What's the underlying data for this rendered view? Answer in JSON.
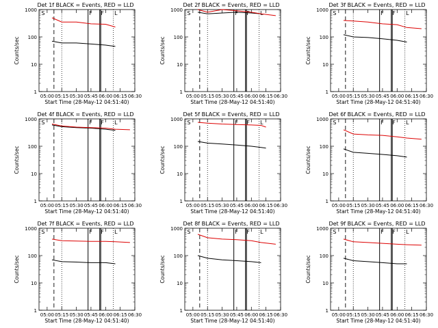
{
  "xlabel": "Start Time (28-May-12 04:51:40)",
  "ylabel": "Counts/sec",
  "x_ticks": [
    "05:00",
    "05:15",
    "05:30",
    "05:45",
    "06:00",
    "06:15",
    "06:30"
  ],
  "y_ticks": [
    "1",
    "10",
    "100",
    "1000"
  ],
  "markers": {
    "solid": [
      "05:42",
      "05:54",
      "05:55"
    ],
    "dotted": [
      "05:15",
      "06:08"
    ],
    "dashed": [
      "05:07"
    ]
  },
  "marker_letters": [
    "S",
    "F",
    "F",
    "L"
  ],
  "colors": {
    "events": "#000000",
    "lld": "#dd0000"
  },
  "chart_data": [
    {
      "type": "line",
      "title": "Det 1f BLACK = Events, RED = LLD",
      "x_range": [
        "04:51:40",
        "06:30"
      ],
      "ylim": [
        1,
        1000
      ],
      "y_scale": "log",
      "x": [
        "05:05",
        "05:15",
        "05:30",
        "05:45",
        "06:00",
        "06:10"
      ],
      "series": [
        {
          "values": [
            70,
            60,
            60,
            55,
            50,
            45
          ]
        },
        {
          "values": [
            500,
            350,
            350,
            300,
            290,
            230
          ]
        }
      ]
    },
    {
      "type": "line",
      "title": "Det 2f BLACK = Events, RED = LLD",
      "x_range": [
        "04:51:40",
        "06:30"
      ],
      "ylim": [
        1,
        1000
      ],
      "y_scale": "log",
      "x": [
        "05:05",
        "05:15",
        "05:30",
        "05:45",
        "06:00",
        "06:10",
        "06:25"
      ],
      "series": [
        {
          "values": [
            800,
            700,
            750,
            800,
            750,
            700,
            null
          ]
        },
        {
          "values": [
            1000,
            800,
            1000,
            900,
            800,
            700,
            600
          ]
        }
      ]
    },
    {
      "type": "line",
      "title": "Det 3f BLACK = Events, RED = LLD",
      "x_range": [
        "04:51:40",
        "06:30"
      ],
      "ylim": [
        1,
        1000
      ],
      "y_scale": "log",
      "x": [
        "05:05",
        "05:15",
        "05:30",
        "05:45",
        "06:00",
        "06:10",
        "06:25"
      ],
      "series": [
        {
          "values": [
            120,
            100,
            95,
            85,
            75,
            65,
            null
          ]
        },
        {
          "values": [
            400,
            380,
            350,
            300,
            280,
            220,
            200
          ]
        }
      ]
    },
    {
      "type": "line",
      "title": "Det 4f BLACK = Events, RED = LLD",
      "x_range": [
        "04:51:40",
        "06:30"
      ],
      "ylim": [
        1,
        1000
      ],
      "y_scale": "log",
      "x": [
        "05:05",
        "05:15",
        "05:30",
        "05:45",
        "06:00",
        "06:10",
        "06:25"
      ],
      "series": [
        {
          "values": [
            600,
            520,
            480,
            460,
            420,
            380,
            null
          ]
        },
        {
          "values": [
            650,
            550,
            500,
            480,
            460,
            420,
            400
          ]
        }
      ]
    },
    {
      "type": "line",
      "title": "Det 5f BLACK = Events, RED = LLD",
      "x_range": [
        "04:51:40",
        "06:30"
      ],
      "ylim": [
        1,
        1000
      ],
      "y_scale": "log",
      "x": [
        "05:05",
        "05:15",
        "05:30",
        "05:45",
        "06:00",
        "06:10",
        "06:15"
      ],
      "series": [
        {
          "values": [
            150,
            130,
            120,
            110,
            100,
            90,
            85
          ]
        },
        {
          "values": [
            750,
            700,
            650,
            620,
            600,
            580,
            500
          ]
        }
      ]
    },
    {
      "type": "line",
      "title": "Det 6f BLACK = Events, RED = LLD",
      "x_range": [
        "04:51:40",
        "06:30"
      ],
      "ylim": [
        1,
        1000
      ],
      "y_scale": "log",
      "x": [
        "05:05",
        "05:15",
        "05:30",
        "05:45",
        "06:00",
        "06:10",
        "06:25"
      ],
      "series": [
        {
          "values": [
            80,
            60,
            55,
            50,
            45,
            40,
            null
          ]
        },
        {
          "values": [
            400,
            280,
            260,
            250,
            220,
            200,
            180
          ]
        }
      ]
    },
    {
      "type": "line",
      "title": "Det 7f BLACK = Events, RED = LLD",
      "x_range": [
        "04:51:40",
        "06:30"
      ],
      "ylim": [
        1,
        1000
      ],
      "y_scale": "log",
      "x": [
        "05:05",
        "05:15",
        "05:30",
        "05:45",
        "06:00",
        "06:10",
        "06:25"
      ],
      "series": [
        {
          "values": [
            70,
            60,
            58,
            55,
            55,
            50,
            null
          ]
        },
        {
          "values": [
            400,
            350,
            340,
            330,
            330,
            320,
            300
          ]
        }
      ]
    },
    {
      "type": "line",
      "title": "Det 8f BLACK = Events, RED = LLD",
      "x_range": [
        "04:51:40",
        "06:30"
      ],
      "ylim": [
        1,
        1000
      ],
      "y_scale": "log",
      "x": [
        "05:05",
        "05:15",
        "05:30",
        "05:45",
        "06:00",
        "06:10",
        "06:25"
      ],
      "series": [
        {
          "values": [
            100,
            80,
            70,
            65,
            60,
            55,
            null
          ]
        },
        {
          "values": [
            600,
            450,
            400,
            380,
            350,
            300,
            260
          ]
        }
      ]
    },
    {
      "type": "line",
      "title": "Det 9f BLACK = Events, RED = LLD",
      "x_range": [
        "04:51:40",
        "06:30"
      ],
      "ylim": [
        1,
        1000
      ],
      "y_scale": "log",
      "x": [
        "05:05",
        "05:15",
        "05:30",
        "05:45",
        "06:00",
        "06:10",
        "06:25"
      ],
      "series": [
        {
          "values": [
            80,
            65,
            60,
            55,
            50,
            50,
            null
          ]
        },
        {
          "values": [
            400,
            320,
            300,
            280,
            260,
            250,
            240
          ]
        }
      ]
    }
  ]
}
